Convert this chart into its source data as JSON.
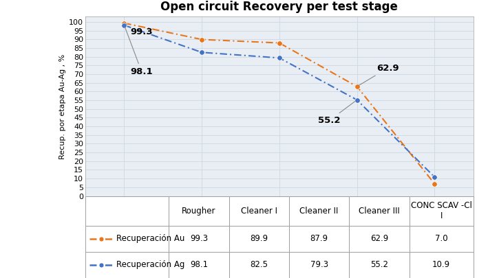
{
  "title": "Open circuit Recovery per test stage",
  "ylabel": "Recup. por etapa Au-Ag , %",
  "categories": [
    "Rougher",
    "Cleaner I",
    "Cleaner II",
    "Cleaner III",
    "CONC SCAV -Cl\nI"
  ],
  "series": [
    {
      "name": "Recuperación Au",
      "values": [
        99.3,
        89.9,
        87.9,
        62.9,
        7.0
      ],
      "color": "#E8761A"
    },
    {
      "name": "Recuperación Ag",
      "values": [
        98.1,
        82.5,
        79.3,
        55.2,
        10.9
      ],
      "color": "#4472C4"
    }
  ],
  "yticks": [
    0,
    5,
    10,
    15,
    20,
    25,
    30,
    35,
    40,
    45,
    50,
    55,
    60,
    65,
    70,
    75,
    80,
    85,
    90,
    95,
    100
  ],
  "ylim": [
    0,
    103
  ],
  "annotation_au_rougher": {
    "text": "99.3",
    "xi": 0,
    "yi": 99.3,
    "xt": 0.08,
    "yt": 93.0
  },
  "annotation_ag_rougher": {
    "text": "98.1",
    "xi": 0,
    "yi": 98.1,
    "xt": 0.08,
    "yt": 70.0
  },
  "annotation_au_cleaner3": {
    "text": "62.9",
    "xi": 3,
    "yi": 62.9,
    "xt": 3.25,
    "yt": 72.0
  },
  "annotation_ag_cleaner3": {
    "text": "55.2",
    "xi": 3,
    "yi": 55.2,
    "xt": 2.5,
    "yt": 42.0
  },
  "table_header": [
    "",
    "Rougher",
    "Cleaner I",
    "Cleaner II",
    "Cleaner III",
    "CONC SCAV -Cl\nI"
  ],
  "table_row_au": [
    "99.3",
    "89.9",
    "87.9",
    "62.9",
    "7.0"
  ],
  "table_row_ag": [
    "98.1",
    "82.5",
    "79.3",
    "55.2",
    "10.9"
  ],
  "background_color": "#FFFFFF",
  "plot_bg_color": "#E8EEF4",
  "grid_color": "#C8D4E0",
  "title_fontsize": 12,
  "axis_label_fontsize": 8,
  "tick_fontsize": 8,
  "table_fontsize": 8.5,
  "col_widths": [
    0.215,
    0.155,
    0.155,
    0.155,
    0.155,
    0.165
  ]
}
